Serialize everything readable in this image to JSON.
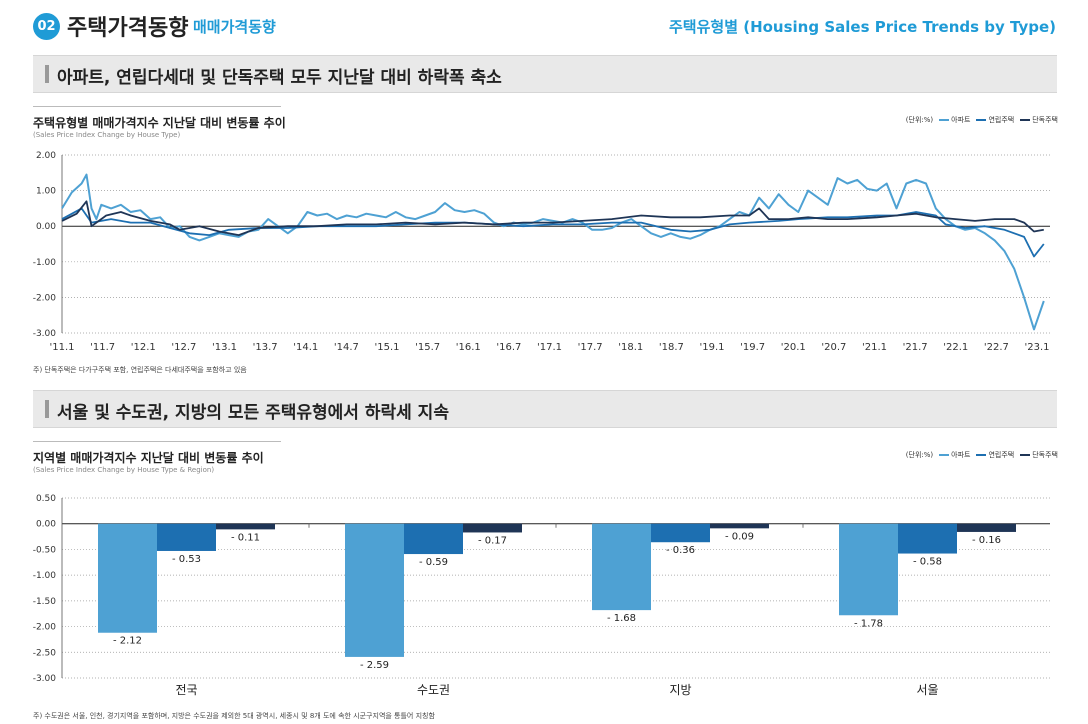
{
  "header": {
    "badge": "02",
    "title": "주택가격동향",
    "subtitle": "매매가격동향",
    "right_title": "주택유형별 (Housing Sales Price Trends by Type)"
  },
  "section1": {
    "heading": "아파트, 연립다세대 및 단독주택 모두 지난달 대비 하락폭 축소"
  },
  "section2": {
    "heading": "서울 및 수도권, 지방의 모든 주택유형에서 하락세 지속"
  },
  "colors": {
    "apt": "#4ea1d3",
    "row": "#1d6fb1",
    "det": "#1f3556",
    "accent": "#1f9bd6"
  },
  "chart1": {
    "title": "주택유형별 매매가격지수 지난달 대비 변동률 추이",
    "subtitle": "(Sales Price Index Change by House Type)",
    "unit": "(단위:%)",
    "note": "주) 단독주택은 다가구주택 포함, 연립주택은 다세대주택을 포함하고 있음"
  },
  "chart2": {
    "title": "지역별 매매가격지수 지난달 대비 변동률 추이",
    "subtitle": "(Sales Price Index Change by House Type & Region)",
    "unit": "(단위:%)",
    "note": "주) 수도권은 서울, 인천, 경기지역을 포함하며, 지방은 수도권을 제외한 5대 광역시, 세종시 및 8개 도에 속한 시군구지역을 통틀어 지칭함"
  },
  "legend": {
    "apt": "아파트",
    "row": "연립주택",
    "det": "단독주택"
  },
  "chart_data": [
    {
      "type": "line",
      "title": "주택유형별 매매가격지수 지난달 대비 변동률 추이",
      "ylabel": "%",
      "ylim": [
        -3.0,
        2.0
      ],
      "yticks": [
        "2.00",
        "1.00",
        "0.00",
        "-1.00",
        "-2.00",
        "-3.00"
      ],
      "xticks": [
        "'11.1",
        "'11.7",
        "'12.1",
        "'12.7",
        "'13.1",
        "'13.7",
        "'14.1",
        "'14.7",
        "'15.1",
        "'15.7",
        "'16.1",
        "'16.7",
        "'17.1",
        "'17.7",
        "'18.1",
        "'18.7",
        "'19.1",
        "'19.7",
        "'20.1",
        "'20.7",
        "'21.1",
        "'21.7",
        "'22.1",
        "'22.7",
        "'23.1"
      ],
      "x_start": "2011-01",
      "x_end": "2023-02",
      "series": [
        {
          "name": "아파트",
          "anchors": [
            [
              0,
              0.5
            ],
            [
              2,
              0.95
            ],
            [
              4,
              1.2
            ],
            [
              5,
              1.45
            ],
            [
              6,
              0.5
            ],
            [
              7,
              0.2
            ],
            [
              8,
              0.6
            ],
            [
              10,
              0.5
            ],
            [
              12,
              0.6
            ],
            [
              14,
              0.4
            ],
            [
              16,
              0.45
            ],
            [
              18,
              0.2
            ],
            [
              20,
              0.25
            ],
            [
              22,
              -0.05
            ],
            [
              24,
              0.0
            ],
            [
              26,
              -0.3
            ],
            [
              28,
              -0.4
            ],
            [
              30,
              -0.3
            ],
            [
              32,
              -0.2
            ],
            [
              34,
              -0.25
            ],
            [
              36,
              -0.3
            ],
            [
              38,
              -0.15
            ],
            [
              40,
              -0.1
            ],
            [
              42,
              0.2
            ],
            [
              44,
              0.0
            ],
            [
              46,
              -0.2
            ],
            [
              48,
              0.0
            ],
            [
              50,
              0.4
            ],
            [
              52,
              0.3
            ],
            [
              54,
              0.35
            ],
            [
              56,
              0.2
            ],
            [
              58,
              0.3
            ],
            [
              60,
              0.25
            ],
            [
              62,
              0.35
            ],
            [
              64,
              0.3
            ],
            [
              66,
              0.25
            ],
            [
              68,
              0.4
            ],
            [
              70,
              0.25
            ],
            [
              72,
              0.2
            ],
            [
              74,
              0.3
            ],
            [
              76,
              0.4
            ],
            [
              78,
              0.65
            ],
            [
              80,
              0.45
            ],
            [
              82,
              0.4
            ],
            [
              84,
              0.45
            ],
            [
              86,
              0.35
            ],
            [
              88,
              0.1
            ],
            [
              90,
              0.0
            ],
            [
              92,
              0.1
            ],
            [
              94,
              0.05
            ],
            [
              96,
              0.1
            ],
            [
              98,
              0.2
            ],
            [
              100,
              0.15
            ],
            [
              102,
              0.1
            ],
            [
              104,
              0.2
            ],
            [
              106,
              0.1
            ],
            [
              108,
              -0.1
            ],
            [
              110,
              -0.1
            ],
            [
              112,
              -0.05
            ],
            [
              114,
              0.1
            ],
            [
              116,
              0.2
            ],
            [
              118,
              0.0
            ],
            [
              120,
              -0.2
            ],
            [
              122,
              -0.3
            ],
            [
              124,
              -0.2
            ],
            [
              126,
              -0.3
            ],
            [
              128,
              -0.35
            ],
            [
              130,
              -0.25
            ],
            [
              132,
              -0.1
            ],
            [
              134,
              0.0
            ],
            [
              136,
              0.2
            ],
            [
              138,
              0.4
            ],
            [
              140,
              0.3
            ],
            [
              142,
              0.8
            ],
            [
              144,
              0.5
            ],
            [
              146,
              0.9
            ],
            [
              148,
              0.6
            ],
            [
              150,
              0.4
            ],
            [
              152,
              1.0
            ],
            [
              154,
              0.8
            ],
            [
              156,
              0.6
            ],
            [
              158,
              1.35
            ],
            [
              160,
              1.2
            ],
            [
              162,
              1.3
            ],
            [
              164,
              1.05
            ],
            [
              166,
              1.0
            ],
            [
              168,
              1.2
            ],
            [
              170,
              0.5
            ],
            [
              172,
              1.2
            ],
            [
              174,
              1.3
            ],
            [
              176,
              1.2
            ],
            [
              178,
              0.5
            ],
            [
              180,
              0.2
            ],
            [
              182,
              0.0
            ],
            [
              184,
              -0.1
            ],
            [
              186,
              -0.05
            ],
            [
              188,
              -0.2
            ],
            [
              190,
              -0.4
            ],
            [
              192,
              -0.7
            ],
            [
              194,
              -1.2
            ],
            [
              196,
              -2.0
            ],
            [
              198,
              -2.9
            ],
            [
              200,
              -2.1
            ]
          ]
        },
        {
          "name": "연립주택",
          "anchors": [
            [
              0,
              0.2
            ],
            [
              4,
              0.5
            ],
            [
              6,
              0.1
            ],
            [
              10,
              0.2
            ],
            [
              14,
              0.1
            ],
            [
              18,
              0.1
            ],
            [
              22,
              -0.05
            ],
            [
              26,
              -0.2
            ],
            [
              30,
              -0.25
            ],
            [
              34,
              -0.1
            ],
            [
              40,
              -0.05
            ],
            [
              46,
              -0.05
            ],
            [
              52,
              0.0
            ],
            [
              58,
              0.0
            ],
            [
              64,
              0.0
            ],
            [
              70,
              0.05
            ],
            [
              76,
              0.1
            ],
            [
              82,
              0.1
            ],
            [
              88,
              0.05
            ],
            [
              94,
              0.0
            ],
            [
              100,
              0.05
            ],
            [
              106,
              0.05
            ],
            [
              112,
              0.1
            ],
            [
              118,
              0.1
            ],
            [
              124,
              -0.1
            ],
            [
              128,
              -0.15
            ],
            [
              132,
              -0.1
            ],
            [
              136,
              0.05
            ],
            [
              140,
              0.1
            ],
            [
              146,
              0.15
            ],
            [
              150,
              0.2
            ],
            [
              156,
              0.25
            ],
            [
              160,
              0.25
            ],
            [
              166,
              0.3
            ],
            [
              170,
              0.3
            ],
            [
              174,
              0.4
            ],
            [
              178,
              0.3
            ],
            [
              180,
              0.05
            ],
            [
              184,
              -0.05
            ],
            [
              188,
              0.0
            ],
            [
              192,
              -0.1
            ],
            [
              196,
              -0.3
            ],
            [
              198,
              -0.85
            ],
            [
              200,
              -0.5
            ]
          ]
        },
        {
          "name": "단독주택",
          "anchors": [
            [
              0,
              0.15
            ],
            [
              3,
              0.35
            ],
            [
              5,
              0.7
            ],
            [
              6,
              0.0
            ],
            [
              9,
              0.3
            ],
            [
              12,
              0.4
            ],
            [
              14,
              0.3
            ],
            [
              18,
              0.15
            ],
            [
              22,
              0.05
            ],
            [
              24,
              -0.1
            ],
            [
              28,
              0.0
            ],
            [
              32,
              -0.15
            ],
            [
              36,
              -0.25
            ],
            [
              40,
              -0.05
            ],
            [
              46,
              0.0
            ],
            [
              52,
              0.0
            ],
            [
              58,
              0.05
            ],
            [
              64,
              0.05
            ],
            [
              70,
              0.1
            ],
            [
              76,
              0.05
            ],
            [
              82,
              0.1
            ],
            [
              88,
              0.05
            ],
            [
              94,
              0.1
            ],
            [
              100,
              0.1
            ],
            [
              106,
              0.15
            ],
            [
              112,
              0.2
            ],
            [
              118,
              0.3
            ],
            [
              124,
              0.25
            ],
            [
              130,
              0.25
            ],
            [
              136,
              0.3
            ],
            [
              140,
              0.3
            ],
            [
              142,
              0.5
            ],
            [
              144,
              0.2
            ],
            [
              148,
              0.2
            ],
            [
              152,
              0.25
            ],
            [
              156,
              0.2
            ],
            [
              160,
              0.2
            ],
            [
              166,
              0.25
            ],
            [
              170,
              0.3
            ],
            [
              174,
              0.35
            ],
            [
              178,
              0.25
            ],
            [
              182,
              0.2
            ],
            [
              186,
              0.15
            ],
            [
              190,
              0.2
            ],
            [
              194,
              0.2
            ],
            [
              196,
              0.1
            ],
            [
              198,
              -0.15
            ],
            [
              200,
              -0.1
            ]
          ]
        }
      ]
    },
    {
      "type": "bar",
      "title": "지역별 매매가격지수 지난달 대비 변동률 추이",
      "ylim": [
        -3.0,
        0.5
      ],
      "yticks": [
        "0.50",
        "0.00",
        "-0.50",
        "-1.00",
        "-1.50",
        "-2.00",
        "-2.50",
        "-3.00"
      ],
      "categories": [
        "전국",
        "수도권",
        "지방",
        "서울"
      ],
      "series": [
        {
          "name": "아파트",
          "values": [
            -2.12,
            -2.59,
            -1.68,
            -1.78
          ],
          "labels": [
            "- 2.12",
            "- 2.59",
            "- 1.68",
            "- 1.78"
          ]
        },
        {
          "name": "연립주택",
          "values": [
            -0.53,
            -0.59,
            -0.36,
            -0.58
          ],
          "labels": [
            "- 0.53",
            "- 0.59",
            "- 0.36",
            "- 0.58"
          ]
        },
        {
          "name": "단독주택",
          "values": [
            -0.11,
            -0.17,
            -0.09,
            -0.16
          ],
          "labels": [
            "- 0.11",
            "- 0.17",
            "- 0.09",
            "- 0.16"
          ]
        }
      ]
    }
  ]
}
